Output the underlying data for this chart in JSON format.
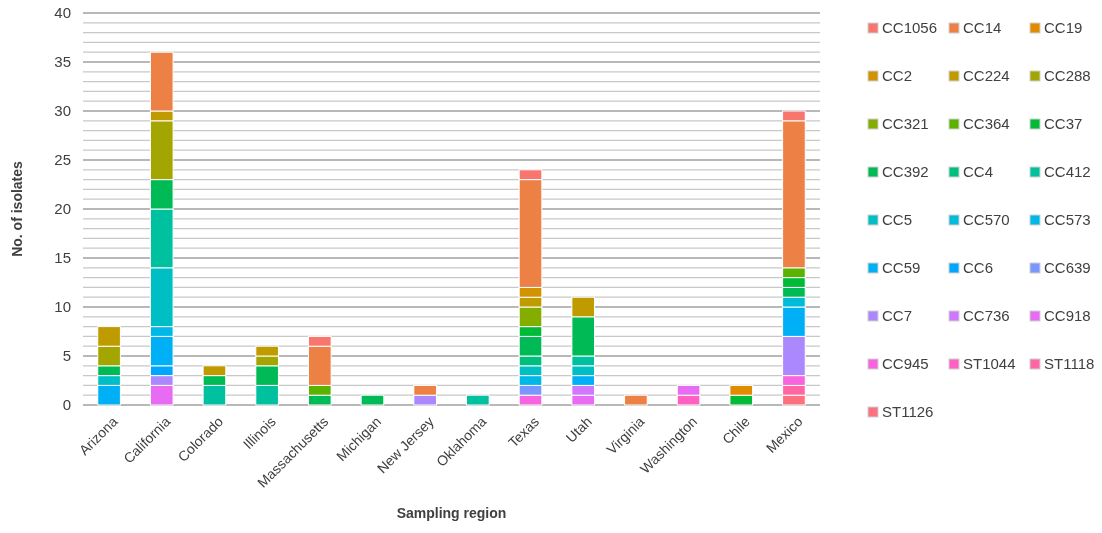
{
  "chart_data": {
    "type": "bar",
    "stacked": true,
    "xlabel": "Sampling region",
    "ylabel": "No. of isolates",
    "categories": [
      "Arizona",
      "California",
      "Colorado",
      "Illinois",
      "Massachusetts",
      "Michigan",
      "New Jersey",
      "Oklahoma",
      "Texas",
      "Utah",
      "Virginia",
      "Washington",
      "Chile",
      "Mexico"
    ],
    "ylim": [
      0,
      40
    ],
    "yticks": [
      0,
      {
        "value": 1,
        "label": null
      },
      {
        "value": 2,
        "label": null
      },
      {
        "value": 3,
        "label": null
      },
      {
        "value": 4,
        "label": null
      },
      5,
      {
        "value": 6,
        "label": null
      },
      {
        "value": 7,
        "label": null
      },
      {
        "value": 8,
        "label": null
      },
      {
        "value": 9,
        "label": null
      },
      10,
      {
        "value": 11,
        "label": null
      },
      {
        "value": 12,
        "label": null
      },
      {
        "value": 13,
        "label": null
      },
      {
        "value": 14,
        "label": null
      },
      15,
      {
        "value": 16,
        "label": null
      },
      {
        "value": 17,
        "label": null
      },
      {
        "value": 18,
        "label": null
      },
      {
        "value": 19,
        "label": null
      },
      20,
      {
        "value": 21,
        "label": null
      },
      {
        "value": 22,
        "label": null
      },
      {
        "value": 23,
        "label": null
      },
      {
        "value": 24,
        "label": null
      },
      25,
      {
        "value": 26,
        "label": null
      },
      {
        "value": 27,
        "label": null
      },
      {
        "value": 28,
        "label": null
      },
      {
        "value": 29,
        "label": null
      },
      30,
      {
        "value": 31,
        "label": null
      },
      {
        "value": 32,
        "label": null
      },
      {
        "value": 33,
        "label": null
      },
      {
        "value": 34,
        "label": null
      },
      35,
      {
        "value": 36,
        "label": null
      },
      {
        "value": 37,
        "label": null
      },
      {
        "value": 38,
        "label": null
      },
      {
        "value": 39,
        "label": null
      },
      40
    ],
    "grid": "y",
    "legend": "right",
    "series": [
      {
        "name": "ST1126",
        "color": "#fc717f",
        "values": [
          null,
          null,
          null,
          null,
          null,
          null,
          null,
          null,
          null,
          null,
          null,
          null,
          null,
          1
        ]
      },
      {
        "name": "ST1118",
        "color": "#ff67a4",
        "values": [
          null,
          null,
          null,
          null,
          null,
          null,
          null,
          null,
          null,
          null,
          null,
          null,
          null,
          1
        ]
      },
      {
        "name": "ST1044",
        "color": "#ff61c3",
        "values": [
          null,
          null,
          null,
          null,
          null,
          null,
          null,
          null,
          null,
          null,
          null,
          1,
          null,
          null
        ]
      },
      {
        "name": "CC945",
        "color": "#f863df",
        "values": [
          null,
          null,
          null,
          null,
          null,
          null,
          null,
          null,
          1,
          null,
          null,
          null,
          null,
          1
        ]
      },
      {
        "name": "CC918",
        "color": "#e76bf3",
        "values": [
          null,
          2,
          null,
          null,
          null,
          null,
          null,
          null,
          null,
          1,
          null,
          1,
          null,
          null
        ]
      },
      {
        "name": "CC736",
        "color": "#cf78ff",
        "values": [
          null,
          null,
          null,
          null,
          null,
          null,
          null,
          null,
          null,
          1,
          null,
          null,
          null,
          null
        ]
      },
      {
        "name": "CC7",
        "color": "#ac88ff",
        "values": [
          null,
          1,
          null,
          null,
          null,
          null,
          1,
          null,
          null,
          null,
          null,
          null,
          null,
          4
        ]
      },
      {
        "name": "CC639",
        "color": "#7997ff",
        "values": [
          null,
          null,
          null,
          null,
          null,
          null,
          null,
          null,
          1,
          null,
          null,
          null,
          null,
          null
        ]
      },
      {
        "name": "CC6",
        "color": "#00a5ff",
        "values": [
          null,
          1,
          null,
          null,
          null,
          null,
          null,
          null,
          null,
          null,
          null,
          null,
          null,
          null
        ]
      },
      {
        "name": "CC59",
        "color": "#00b0f6",
        "values": [
          2,
          3,
          null,
          null,
          null,
          null,
          null,
          null,
          null,
          1,
          null,
          null,
          null,
          3
        ]
      },
      {
        "name": "CC573",
        "color": "#00b8e7",
        "values": [
          null,
          1,
          null,
          null,
          null,
          null,
          null,
          null,
          1,
          null,
          null,
          null,
          null,
          null
        ]
      },
      {
        "name": "CC570",
        "color": "#00bcd8",
        "values": [
          null,
          null,
          null,
          null,
          null,
          null,
          null,
          null,
          null,
          null,
          null,
          null,
          null,
          1
        ]
      },
      {
        "name": "CC5",
        "color": "#00bfc4",
        "values": [
          1,
          6,
          null,
          null,
          null,
          null,
          null,
          null,
          1,
          1,
          null,
          null,
          null,
          null
        ]
      },
      {
        "name": "CC412",
        "color": "#00c19f",
        "values": [
          null,
          6,
          2,
          2,
          null,
          null,
          null,
          1,
          null,
          1,
          null,
          null,
          null,
          null
        ]
      },
      {
        "name": "CC4",
        "color": "#00bf7d",
        "values": [
          null,
          null,
          null,
          null,
          null,
          null,
          null,
          null,
          1,
          null,
          null,
          null,
          null,
          null
        ]
      },
      {
        "name": "CC392",
        "color": "#00bb55",
        "values": [
          1,
          3,
          1,
          2,
          1,
          1,
          null,
          null,
          2,
          4,
          null,
          null,
          null,
          1
        ]
      },
      {
        "name": "CC37",
        "color": "#00ba38",
        "values": [
          null,
          null,
          null,
          null,
          null,
          null,
          null,
          null,
          1,
          null,
          null,
          null,
          1,
          1
        ]
      },
      {
        "name": "CC364",
        "color": "#5bb300",
        "values": [
          null,
          null,
          null,
          null,
          1,
          null,
          null,
          null,
          null,
          null,
          null,
          null,
          null,
          1
        ]
      },
      {
        "name": "CC321",
        "color": "#85ad00",
        "values": [
          null,
          null,
          null,
          null,
          null,
          null,
          null,
          null,
          2,
          null,
          null,
          null,
          null,
          null
        ]
      },
      {
        "name": "CC288",
        "color": "#a3a500",
        "values": [
          2,
          6,
          null,
          1,
          null,
          null,
          null,
          null,
          null,
          null,
          null,
          null,
          null,
          null
        ]
      },
      {
        "name": "CC224",
        "color": "#bf9b00",
        "values": [
          2,
          1,
          1,
          1,
          null,
          null,
          null,
          null,
          1,
          2,
          null,
          null,
          null,
          null
        ]
      },
      {
        "name": "CC2",
        "color": "#d39200",
        "values": [
          null,
          null,
          null,
          null,
          null,
          null,
          null,
          null,
          1,
          null,
          null,
          null,
          null,
          null
        ]
      },
      {
        "name": "CC19",
        "color": "#e08b00",
        "values": [
          null,
          null,
          null,
          null,
          null,
          null,
          null,
          null,
          null,
          null,
          null,
          null,
          1,
          null
        ]
      },
      {
        "name": "CC14",
        "color": "#ed8044",
        "values": [
          null,
          6,
          null,
          null,
          4,
          null,
          1,
          null,
          11,
          null,
          1,
          null,
          null,
          15
        ]
      },
      {
        "name": "CC1056",
        "color": "#f8766d",
        "values": [
          null,
          null,
          null,
          null,
          1,
          null,
          null,
          null,
          1,
          null,
          null,
          null,
          null,
          1
        ]
      }
    ]
  }
}
